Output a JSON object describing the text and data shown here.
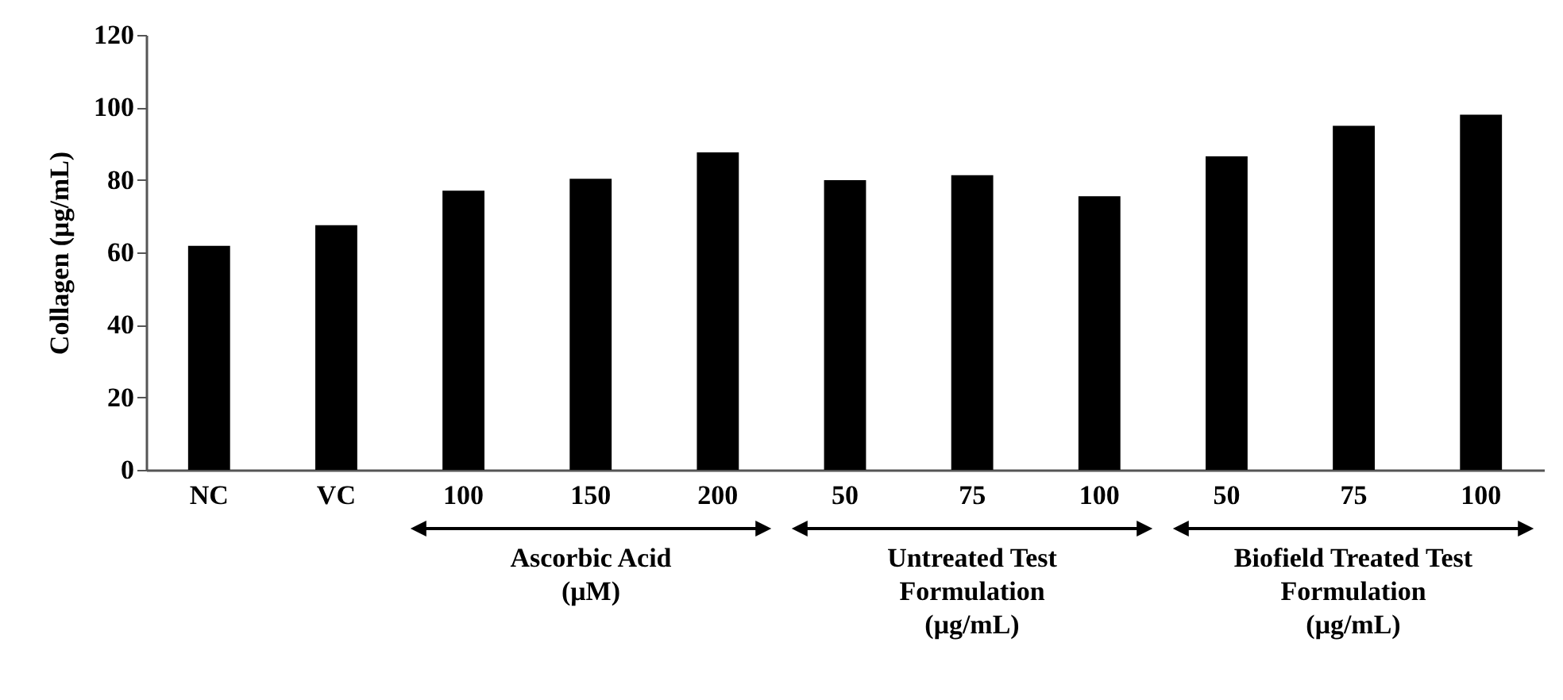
{
  "chart_data": {
    "type": "bar",
    "ylabel": "Collagen (μg/mL)",
    "categories": [
      "NC",
      "VC",
      "100",
      "150",
      "200",
      "50",
      "75",
      "100",
      "50",
      "75",
      "100"
    ],
    "values": [
      61.8,
      67.5,
      77.0,
      80.3,
      87.6,
      79.9,
      81.3,
      75.5,
      86.5,
      94.9,
      98.0
    ],
    "color": "#000000",
    "ylim": [
      0,
      120
    ],
    "yticks": [
      0,
      20,
      40,
      60,
      80,
      100,
      120
    ],
    "annotations": [
      "Ascorbic Acid (μM)",
      "Untreated Test Formulation (μg/mL)",
      "Biofield Treated Test Formulation (μg/mL)"
    ]
  }
}
